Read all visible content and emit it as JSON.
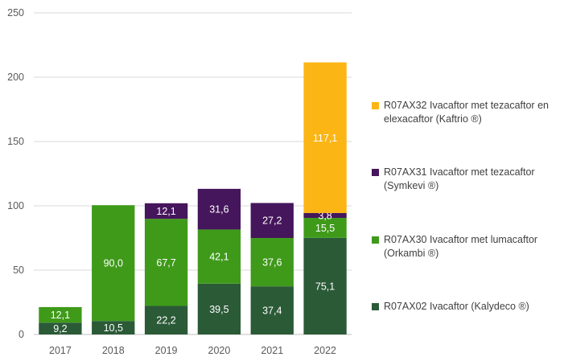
{
  "chart_data": {
    "type": "bar",
    "stacked": true,
    "categories": [
      "2017",
      "2018",
      "2019",
      "2020",
      "2021",
      "2022"
    ],
    "ylim": [
      0,
      250
    ],
    "yticks": [
      0,
      50,
      100,
      150,
      200,
      250
    ],
    "ytick_labels": [
      "0",
      "50",
      "100",
      "150",
      "200",
      "250"
    ],
    "grid": true,
    "legend_position": "right",
    "series": [
      {
        "name": "R07AX02 Ivacaftor (Kalydeco ®)",
        "color": "#2b5a37",
        "values": [
          9.2,
          10.5,
          22.2,
          39.5,
          37.4,
          75.1
        ],
        "labels": [
          "9,2",
          "10,5",
          "22,2",
          "39,5",
          "37,4",
          "75,1"
        ]
      },
      {
        "name": "R07AX30 Ivacaftor met lumacaftor (Orkambi ®)",
        "color": "#3f9a1a",
        "values": [
          12.1,
          90.0,
          67.7,
          42.1,
          37.6,
          15.5
        ],
        "labels": [
          "12,1",
          "90,0",
          "67,7",
          "42,1",
          "37,6",
          "15,5"
        ]
      },
      {
        "name": "R07AX31 Ivacaftor met tezacaftor (Symkevi ®)",
        "color": "#45165c",
        "values": [
          0,
          0,
          12.1,
          31.6,
          27.2,
          3.8
        ],
        "labels": [
          "",
          "",
          "12,1",
          "31,6",
          "27,2",
          "3,8"
        ]
      },
      {
        "name": "R07AX32 Ivacaftor met tezacaftor en elexacaftor (Kaftrio ®)",
        "color": "#fbb515",
        "values": [
          0,
          0,
          0,
          0,
          0,
          117.1
        ],
        "labels": [
          "",
          "",
          "",
          "",
          "",
          "117,1"
        ]
      }
    ]
  }
}
